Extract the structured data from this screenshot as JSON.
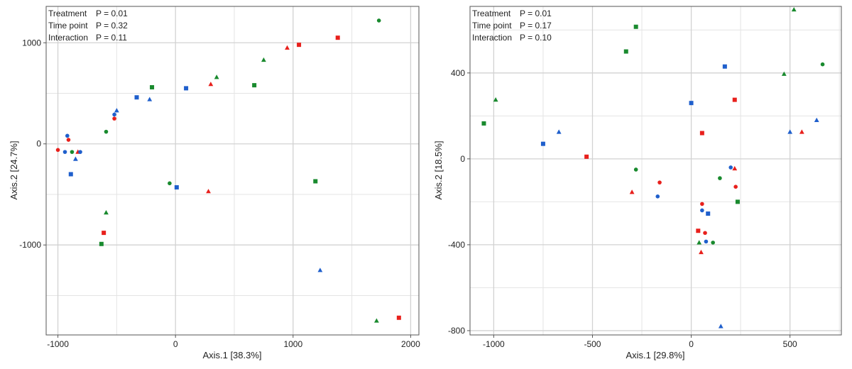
{
  "colors": {
    "red": "#e8201c",
    "blue": "#1f5fcc",
    "green": "#198a2e"
  },
  "chart_data": [
    {
      "type": "scatter",
      "title": "",
      "xlabel": "Axis.1   [38.3%]",
      "ylabel": "Axis.2   [24.7%]",
      "xlim": [
        -1100,
        2070
      ],
      "ylim": [
        -1890,
        1360
      ],
      "xticks": [
        -1000,
        0,
        1000,
        2000
      ],
      "yticks": [
        1000,
        0,
        -1000
      ],
      "stats": [
        {
          "label": "Treatment",
          "value": "P = 0.01"
        },
        {
          "label": "Time point",
          "value": "P = 0.32"
        },
        {
          "label": "Interaction",
          "value": "P = 0.11"
        }
      ],
      "points": [
        {
          "x": -1000,
          "y": -60,
          "color": "red",
          "shape": "circle"
        },
        {
          "x": -920,
          "y": 80,
          "color": "blue",
          "shape": "circle"
        },
        {
          "x": -910,
          "y": 40,
          "color": "red",
          "shape": "circle"
        },
        {
          "x": -940,
          "y": -80,
          "color": "blue",
          "shape": "circle"
        },
        {
          "x": -880,
          "y": -80,
          "color": "green",
          "shape": "circle"
        },
        {
          "x": -850,
          "y": -150,
          "color": "blue",
          "shape": "triangle"
        },
        {
          "x": -830,
          "y": -80,
          "color": "red",
          "shape": "triangle"
        },
        {
          "x": -810,
          "y": -80,
          "color": "blue",
          "shape": "circle"
        },
        {
          "x": -890,
          "y": -300,
          "color": "blue",
          "shape": "square"
        },
        {
          "x": -590,
          "y": 120,
          "color": "green",
          "shape": "circle"
        },
        {
          "x": -520,
          "y": 290,
          "color": "blue",
          "shape": "circle"
        },
        {
          "x": -520,
          "y": 250,
          "color": "red",
          "shape": "circle"
        },
        {
          "x": -500,
          "y": 330,
          "color": "blue",
          "shape": "triangle"
        },
        {
          "x": -330,
          "y": 460,
          "color": "blue",
          "shape": "square"
        },
        {
          "x": -220,
          "y": 440,
          "color": "blue",
          "shape": "triangle"
        },
        {
          "x": -200,
          "y": 560,
          "color": "green",
          "shape": "square"
        },
        {
          "x": 90,
          "y": 550,
          "color": "blue",
          "shape": "square"
        },
        {
          "x": 300,
          "y": 590,
          "color": "red",
          "shape": "triangle"
        },
        {
          "x": 350,
          "y": 660,
          "color": "green",
          "shape": "triangle"
        },
        {
          "x": 670,
          "y": 580,
          "color": "green",
          "shape": "square"
        },
        {
          "x": 750,
          "y": 830,
          "color": "green",
          "shape": "triangle"
        },
        {
          "x": 950,
          "y": 950,
          "color": "red",
          "shape": "triangle"
        },
        {
          "x": 1050,
          "y": 980,
          "color": "red",
          "shape": "square"
        },
        {
          "x": 1380,
          "y": 1050,
          "color": "red",
          "shape": "square"
        },
        {
          "x": 1730,
          "y": 1220,
          "color": "green",
          "shape": "circle"
        },
        {
          "x": -50,
          "y": -390,
          "color": "green",
          "shape": "circle"
        },
        {
          "x": 10,
          "y": -430,
          "color": "blue",
          "shape": "square"
        },
        {
          "x": 280,
          "y": -470,
          "color": "red",
          "shape": "triangle"
        },
        {
          "x": 1190,
          "y": -370,
          "color": "green",
          "shape": "square"
        },
        {
          "x": -590,
          "y": -680,
          "color": "green",
          "shape": "triangle"
        },
        {
          "x": -610,
          "y": -880,
          "color": "red",
          "shape": "square"
        },
        {
          "x": -630,
          "y": -990,
          "color": "green",
          "shape": "square"
        },
        {
          "x": 1230,
          "y": -1250,
          "color": "blue",
          "shape": "triangle"
        },
        {
          "x": 1710,
          "y": -1750,
          "color": "green",
          "shape": "triangle"
        },
        {
          "x": 1900,
          "y": -1720,
          "color": "red",
          "shape": "square"
        }
      ]
    },
    {
      "type": "scatter",
      "title": "",
      "xlabel": "Axis.1   [29.8%]",
      "ylabel": "Axis.2   [18.5%]",
      "xlim": [
        -1120,
        760
      ],
      "ylim": [
        -820,
        710
      ],
      "xticks": [
        -1000,
        -500,
        0,
        500
      ],
      "yticks": [
        400,
        0,
        -400,
        -800
      ],
      "stats": [
        {
          "label": "Treatment",
          "value": "P = 0.01"
        },
        {
          "label": "Time point",
          "value": "P = 0.17"
        },
        {
          "label": "Interaction",
          "value": "P = 0.10"
        }
      ],
      "points": [
        {
          "x": -1050,
          "y": 165,
          "color": "green",
          "shape": "square"
        },
        {
          "x": -990,
          "y": 275,
          "color": "green",
          "shape": "triangle"
        },
        {
          "x": -750,
          "y": 70,
          "color": "blue",
          "shape": "square"
        },
        {
          "x": -670,
          "y": 125,
          "color": "blue",
          "shape": "triangle"
        },
        {
          "x": -530,
          "y": 10,
          "color": "red",
          "shape": "square"
        },
        {
          "x": -330,
          "y": 500,
          "color": "green",
          "shape": "square"
        },
        {
          "x": -280,
          "y": 615,
          "color": "green",
          "shape": "square"
        },
        {
          "x": -280,
          "y": -50,
          "color": "green",
          "shape": "circle"
        },
        {
          "x": -300,
          "y": -155,
          "color": "red",
          "shape": "triangle"
        },
        {
          "x": -160,
          "y": -110,
          "color": "red",
          "shape": "circle"
        },
        {
          "x": -170,
          "y": -175,
          "color": "blue",
          "shape": "circle"
        },
        {
          "x": 0,
          "y": 260,
          "color": "blue",
          "shape": "square"
        },
        {
          "x": 55,
          "y": 120,
          "color": "red",
          "shape": "square"
        },
        {
          "x": 170,
          "y": 430,
          "color": "blue",
          "shape": "square"
        },
        {
          "x": 220,
          "y": 275,
          "color": "red",
          "shape": "square"
        },
        {
          "x": 200,
          "y": -40,
          "color": "blue",
          "shape": "circle"
        },
        {
          "x": 220,
          "y": -45,
          "color": "red",
          "shape": "triangle"
        },
        {
          "x": 145,
          "y": -90,
          "color": "green",
          "shape": "circle"
        },
        {
          "x": 225,
          "y": -130,
          "color": "red",
          "shape": "circle"
        },
        {
          "x": 235,
          "y": -200,
          "color": "green",
          "shape": "square"
        },
        {
          "x": 55,
          "y": -210,
          "color": "red",
          "shape": "circle"
        },
        {
          "x": 55,
          "y": -240,
          "color": "blue",
          "shape": "circle"
        },
        {
          "x": 85,
          "y": -255,
          "color": "blue",
          "shape": "square"
        },
        {
          "x": 35,
          "y": -335,
          "color": "red",
          "shape": "square"
        },
        {
          "x": 70,
          "y": -345,
          "color": "red",
          "shape": "circle"
        },
        {
          "x": 75,
          "y": -385,
          "color": "blue",
          "shape": "circle"
        },
        {
          "x": 40,
          "y": -390,
          "color": "green",
          "shape": "triangle"
        },
        {
          "x": 110,
          "y": -390,
          "color": "green",
          "shape": "circle"
        },
        {
          "x": 50,
          "y": -435,
          "color": "red",
          "shape": "triangle"
        },
        {
          "x": 150,
          "y": -780,
          "color": "blue",
          "shape": "triangle"
        },
        {
          "x": 470,
          "y": 395,
          "color": "green",
          "shape": "triangle"
        },
        {
          "x": 520,
          "y": 695,
          "color": "green",
          "shape": "triangle"
        },
        {
          "x": 665,
          "y": 440,
          "color": "green",
          "shape": "circle"
        },
        {
          "x": 500,
          "y": 125,
          "color": "blue",
          "shape": "triangle"
        },
        {
          "x": 560,
          "y": 125,
          "color": "red",
          "shape": "triangle"
        },
        {
          "x": 635,
          "y": 180,
          "color": "blue",
          "shape": "triangle"
        }
      ]
    }
  ]
}
